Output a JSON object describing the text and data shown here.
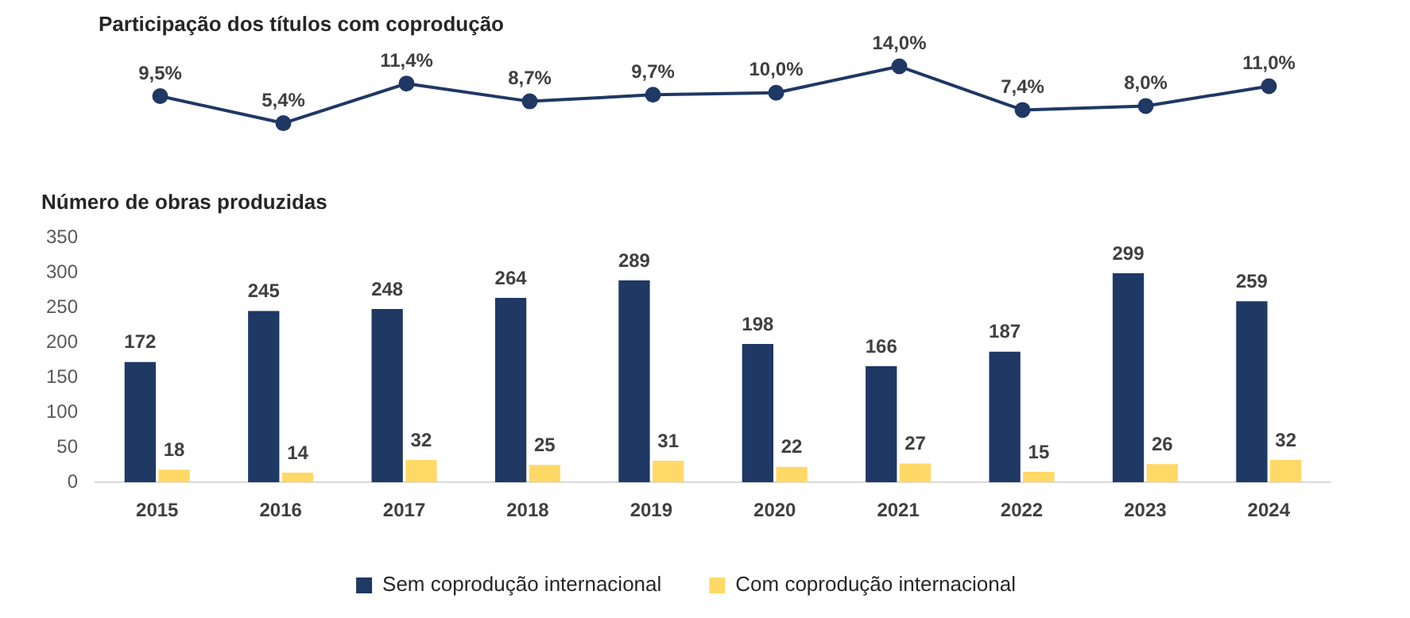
{
  "chart_data": [
    {
      "type": "line",
      "title": "Participação dos títulos com coprodução",
      "categories": [
        null,
        null,
        null,
        null,
        null,
        null,
        null,
        null,
        null,
        null
      ],
      "values": [
        9.5,
        5.4,
        11.4,
        8.7,
        9.7,
        10.0,
        14.0,
        7.4,
        8.0,
        11.0
      ],
      "value_labels": [
        "9,5%",
        "5,4%",
        "11,4%",
        "8,7%",
        "9,7%",
        "10,0%",
        "14,0%",
        "7,4%",
        "8,0%",
        "11,0%"
      ],
      "color": "#1f3864",
      "marker": "circle",
      "tick_labels": false,
      "grid": false,
      "legend": false
    },
    {
      "type": "bar",
      "title": "Número de obras produzidas",
      "categories": [
        "2015",
        "2016",
        "2017",
        "2018",
        "2019",
        "2020",
        "2021",
        "2022",
        "2023",
        "2024"
      ],
      "series": [
        {
          "name": "Sem coprodução internacional",
          "color": "#1f3864",
          "values": [
            172,
            245,
            248,
            264,
            289,
            198,
            166,
            187,
            299,
            259
          ]
        },
        {
          "name": "Com coprodução internacional",
          "color": "#ffd966",
          "values": [
            18,
            14,
            32,
            25,
            31,
            22,
            27,
            15,
            26,
            32
          ]
        }
      ],
      "ylim": [
        0,
        350
      ],
      "yticks": [
        0,
        50,
        100,
        150,
        200,
        250,
        300,
        350
      ],
      "grid": false,
      "legend": "bottom",
      "data_labels": true
    }
  ]
}
